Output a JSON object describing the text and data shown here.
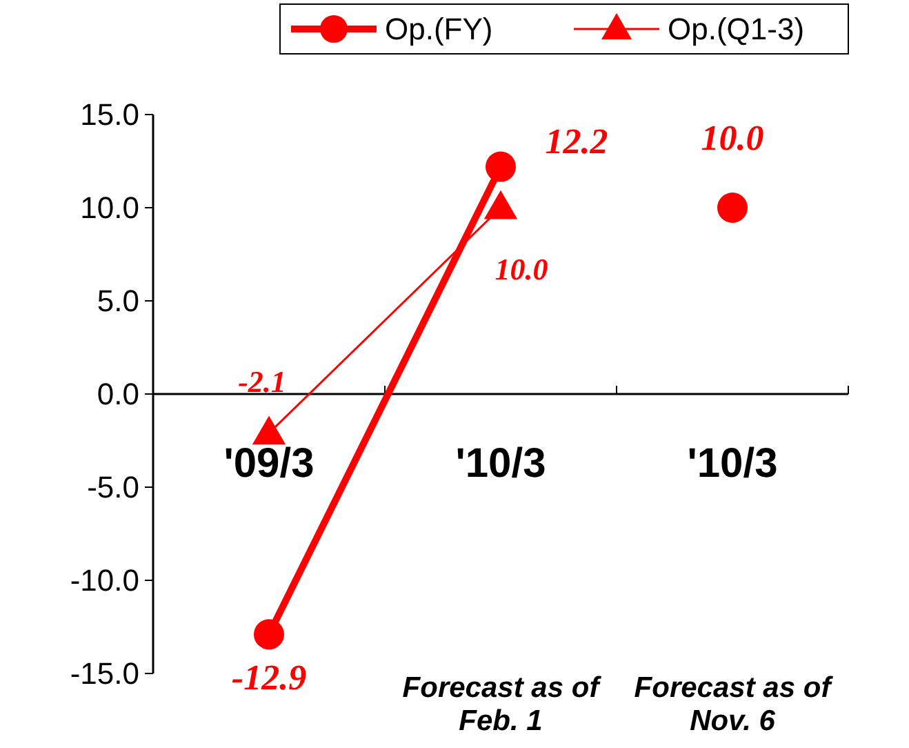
{
  "chart_data": {
    "type": "line",
    "categories": [
      "'09/3",
      "'10/3",
      "'10/3"
    ],
    "series": [
      {
        "name": "Op.(FY)",
        "color": "#ff0000",
        "values": [
          -12.9,
          12.2,
          null
        ],
        "value_labels": [
          "-12.9",
          "12.2",
          null
        ],
        "marker": "circle"
      },
      {
        "name": "Op.(Q1-3)",
        "color": "#ff0000",
        "values": [
          -2.1,
          10.0,
          null
        ],
        "value_labels": [
          "-2.1",
          "10.0",
          null
        ],
        "marker": "triangle"
      },
      {
        "type": "scatter",
        "color": "#ff0000",
        "values": [
          null,
          null,
          10.0
        ],
        "value_labels": [
          null,
          null,
          "10.0"
        ],
        "marker": "circle"
      }
    ],
    "ylim": [
      -15,
      15
    ],
    "yticks": [
      {
        "value": -15,
        "label": "-15.0"
      },
      {
        "value": -10,
        "label": "-10.0"
      },
      {
        "value": -5,
        "label": "-5.0"
      },
      {
        "value": 0,
        "label": "0.0"
      },
      {
        "value": 5,
        "label": "5.0"
      },
      {
        "value": 10,
        "label": "10.0"
      },
      {
        "value": 15,
        "label": "15.0"
      }
    ],
    "annotations": [
      "Forecast as of Feb. 1",
      "Forecast as of Nov. 6"
    ],
    "legend": "top right",
    "grid": false
  }
}
